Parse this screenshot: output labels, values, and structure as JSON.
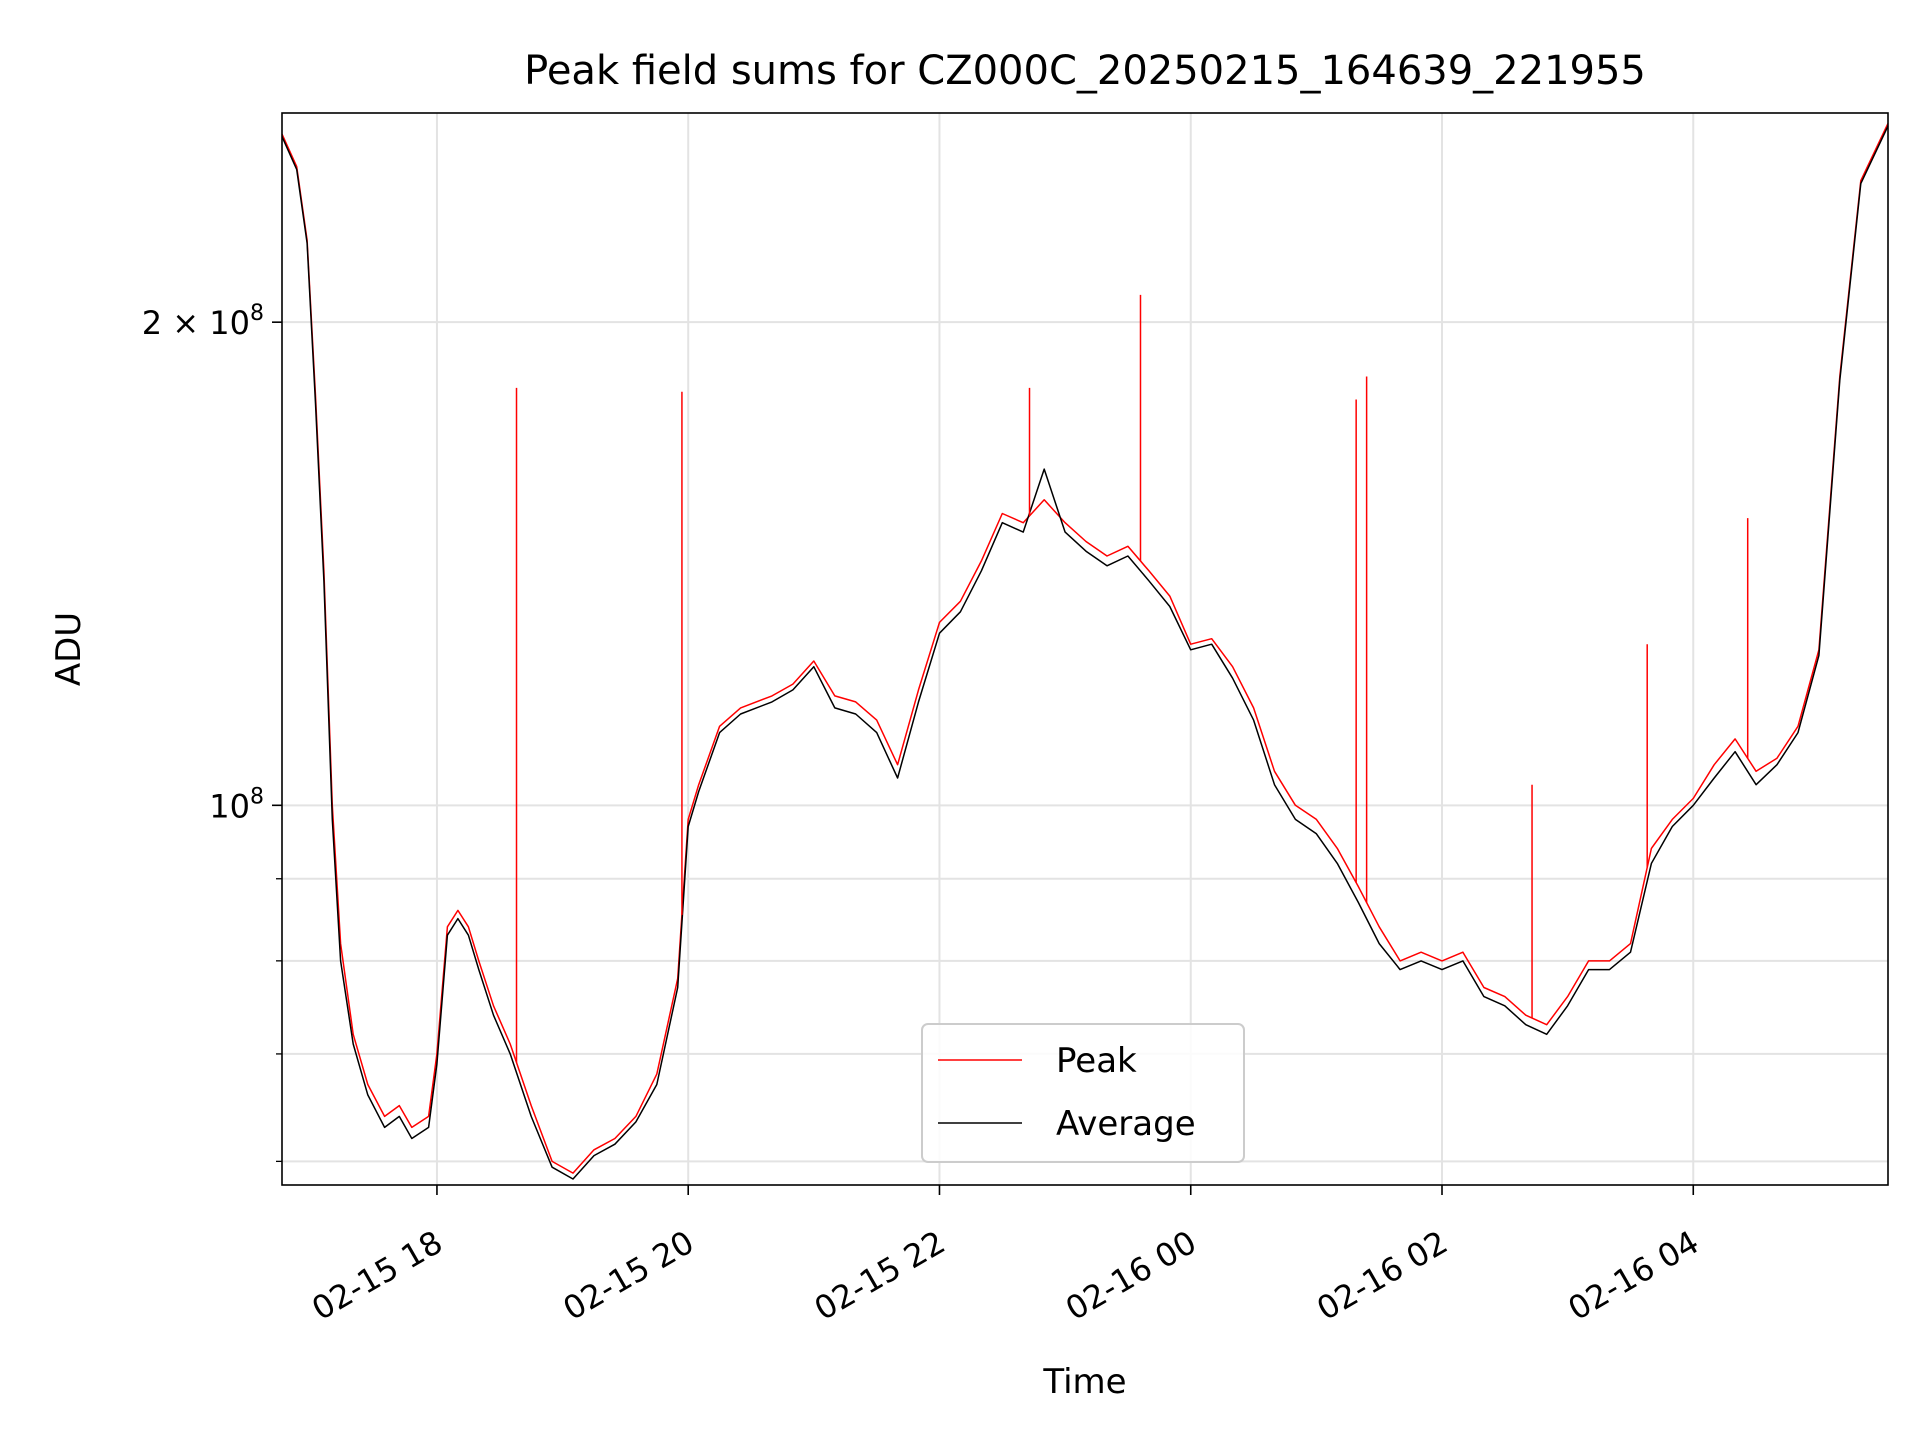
{
  "chart_data": {
    "type": "line",
    "title": "Peak field sums for CZ000C_20250215_164639_221955",
    "xlabel": "Time",
    "ylabel": "ADU",
    "yscale": "log",
    "ylim": [
      58000000,
      270000000
    ],
    "xlim": [
      "2025-02-15 16:46",
      "2025-02-16 05:33"
    ],
    "x_tick_labels": [
      "02-15 18",
      "02-15 20",
      "02-15 22",
      "02-16 00",
      "02-16 02",
      "02-16 04"
    ],
    "x_tick_times": [
      "2025-02-15 18:00",
      "2025-02-15 20:00",
      "2025-02-15 22:00",
      "2025-02-16 00:00",
      "2025-02-16 02:00",
      "2025-02-16 04:00"
    ],
    "y_major_ticks": [
      {
        "value": 200000000,
        "label": "2 × 10^8"
      },
      {
        "value": 100000000,
        "label": "10^8"
      }
    ],
    "y_minor_ticks": [
      60000000,
      70000000,
      80000000,
      90000000
    ],
    "grid": true,
    "legend_position": "lower center",
    "series": [
      {
        "name": "Peak",
        "color": "#ff0000",
        "x": [
          "2025-02-15 16:46",
          "2025-02-15 16:53",
          "2025-02-15 16:58",
          "2025-02-15 17:02",
          "2025-02-15 17:06",
          "2025-02-15 17:10",
          "2025-02-15 17:14",
          "2025-02-15 17:20",
          "2025-02-15 17:27",
          "2025-02-15 17:35",
          "2025-02-15 17:42",
          "2025-02-15 17:48",
          "2025-02-15 17:56",
          "2025-02-15 18:00",
          "2025-02-15 18:05",
          "2025-02-15 18:10",
          "2025-02-15 18:15",
          "2025-02-15 18:20",
          "2025-02-15 18:27",
          "2025-02-15 18:35",
          "2025-02-15 18:45",
          "2025-02-15 18:55",
          "2025-02-15 19:05",
          "2025-02-15 19:15",
          "2025-02-15 19:25",
          "2025-02-15 19:35",
          "2025-02-15 19:45",
          "2025-02-15 19:55",
          "2025-02-15 20:00",
          "2025-02-15 20:05",
          "2025-02-15 20:15",
          "2025-02-15 20:25",
          "2025-02-15 20:40",
          "2025-02-15 20:50",
          "2025-02-15 21:00",
          "2025-02-15 21:10",
          "2025-02-15 21:20",
          "2025-02-15 21:30",
          "2025-02-15 21:40",
          "2025-02-15 21:50",
          "2025-02-15 22:00",
          "2025-02-15 22:10",
          "2025-02-15 22:20",
          "2025-02-15 22:30",
          "2025-02-15 22:40",
          "2025-02-15 22:50",
          "2025-02-15 23:00",
          "2025-02-15 23:10",
          "2025-02-15 23:20",
          "2025-02-15 23:30",
          "2025-02-15 23:40",
          "2025-02-15 23:50",
          "2025-02-16 00:00",
          "2025-02-16 00:10",
          "2025-02-16 00:20",
          "2025-02-16 00:30",
          "2025-02-16 00:40",
          "2025-02-16 00:50",
          "2025-02-16 01:00",
          "2025-02-16 01:10",
          "2025-02-16 01:20",
          "2025-02-16 01:30",
          "2025-02-16 01:40",
          "2025-02-16 01:50",
          "2025-02-16 02:00",
          "2025-02-16 02:10",
          "2025-02-16 02:20",
          "2025-02-16 02:30",
          "2025-02-16 02:40",
          "2025-02-16 02:50",
          "2025-02-16 03:00",
          "2025-02-16 03:10",
          "2025-02-16 03:20",
          "2025-02-16 03:30",
          "2025-02-16 03:40",
          "2025-02-16 03:50",
          "2025-02-16 04:00",
          "2025-02-16 04:10",
          "2025-02-16 04:20",
          "2025-02-16 04:30",
          "2025-02-16 04:40",
          "2025-02-16 04:50",
          "2025-02-16 05:00",
          "2025-02-16 05:10",
          "2025-02-16 05:20",
          "2025-02-16 05:33"
        ],
        "values": [
          262000000,
          250000000,
          225000000,
          180000000,
          140000000,
          100000000,
          82000000,
          72000000,
          67000000,
          64000000,
          65000000,
          63000000,
          64000000,
          70000000,
          84000000,
          86000000,
          84000000,
          80000000,
          75000000,
          71000000,
          65000000,
          60000000,
          59000000,
          61000000,
          62000000,
          64000000,
          68000000,
          78000000,
          98000000,
          103000000,
          112000000,
          115000000,
          117000000,
          119000000,
          123000000,
          117000000,
          116000000,
          113000000,
          106000000,
          118000000,
          130000000,
          134000000,
          142000000,
          152000000,
          150000000,
          155000000,
          150000000,
          146000000,
          143000000,
          145000000,
          140000000,
          135000000,
          126000000,
          127000000,
          122000000,
          115000000,
          105000000,
          100000000,
          98000000,
          94000000,
          89000000,
          84000000,
          80000000,
          81000000,
          80000000,
          81000000,
          77000000,
          76000000,
          74000000,
          73000000,
          76000000,
          80000000,
          80000000,
          82000000,
          94000000,
          98000000,
          101000000,
          106000000,
          110000000,
          105000000,
          107000000,
          112000000,
          125000000,
          185000000,
          245000000,
          266000000
        ],
        "spikes": [
          {
            "x": "2025-02-15 18:38",
            "value": 182000000
          },
          {
            "x": "2025-02-15 19:57",
            "value": 181000000
          },
          {
            "x": "2025-02-15 22:43",
            "value": 182000000
          },
          {
            "x": "2025-02-15 23:36",
            "value": 208000000
          },
          {
            "x": "2025-02-16 01:19",
            "value": 179000000
          },
          {
            "x": "2025-02-16 01:24",
            "value": 185000000
          },
          {
            "x": "2025-02-16 02:43",
            "value": 103000000
          },
          {
            "x": "2025-02-16 03:38",
            "value": 126000000
          },
          {
            "x": "2025-02-16 04:26",
            "value": 151000000
          }
        ]
      },
      {
        "name": "Average",
        "color": "#000000",
        "x": [
          "2025-02-15 16:46",
          "2025-02-15 16:53",
          "2025-02-15 16:58",
          "2025-02-15 17:02",
          "2025-02-15 17:06",
          "2025-02-15 17:10",
          "2025-02-15 17:14",
          "2025-02-15 17:20",
          "2025-02-15 17:27",
          "2025-02-15 17:35",
          "2025-02-15 17:42",
          "2025-02-15 17:48",
          "2025-02-15 17:56",
          "2025-02-15 18:00",
          "2025-02-15 18:05",
          "2025-02-15 18:10",
          "2025-02-15 18:15",
          "2025-02-15 18:20",
          "2025-02-15 18:27",
          "2025-02-15 18:35",
          "2025-02-15 18:45",
          "2025-02-15 18:55",
          "2025-02-15 19:05",
          "2025-02-15 19:15",
          "2025-02-15 19:25",
          "2025-02-15 19:35",
          "2025-02-15 19:45",
          "2025-02-15 19:55",
          "2025-02-15 20:00",
          "2025-02-15 20:05",
          "2025-02-15 20:15",
          "2025-02-15 20:25",
          "2025-02-15 20:40",
          "2025-02-15 20:50",
          "2025-02-15 21:00",
          "2025-02-15 21:10",
          "2025-02-15 21:20",
          "2025-02-15 21:30",
          "2025-02-15 21:40",
          "2025-02-15 21:50",
          "2025-02-15 22:00",
          "2025-02-15 22:10",
          "2025-02-15 22:20",
          "2025-02-15 22:30",
          "2025-02-15 22:40",
          "2025-02-15 22:50",
          "2025-02-15 23:00",
          "2025-02-15 23:10",
          "2025-02-15 23:20",
          "2025-02-15 23:30",
          "2025-02-15 23:40",
          "2025-02-15 23:50",
          "2025-02-16 00:00",
          "2025-02-16 00:10",
          "2025-02-16 00:20",
          "2025-02-16 00:30",
          "2025-02-16 00:40",
          "2025-02-16 00:50",
          "2025-02-16 01:00",
          "2025-02-16 01:10",
          "2025-02-16 01:20",
          "2025-02-16 01:30",
          "2025-02-16 01:40",
          "2025-02-16 01:50",
          "2025-02-16 02:00",
          "2025-02-16 02:10",
          "2025-02-16 02:20",
          "2025-02-16 02:30",
          "2025-02-16 02:40",
          "2025-02-16 02:50",
          "2025-02-16 03:00",
          "2025-02-16 03:10",
          "2025-02-16 03:20",
          "2025-02-16 03:30",
          "2025-02-16 03:40",
          "2025-02-16 03:50",
          "2025-02-16 04:00",
          "2025-02-16 04:10",
          "2025-02-16 04:20",
          "2025-02-16 04:30",
          "2025-02-16 04:40",
          "2025-02-16 04:50",
          "2025-02-16 05:00",
          "2025-02-16 05:10",
          "2025-02-16 05:20",
          "2025-02-16 05:33"
        ],
        "values": [
          261000000,
          249000000,
          224000000,
          178000000,
          138000000,
          98000000,
          80000000,
          71000000,
          66000000,
          63000000,
          64000000,
          62000000,
          63000000,
          69000000,
          83000000,
          85000000,
          83000000,
          79000000,
          74000000,
          70000000,
          64000000,
          59500000,
          58500000,
          60500000,
          61500000,
          63500000,
          67000000,
          77000000,
          97000000,
          102000000,
          111000000,
          114000000,
          116000000,
          118000000,
          122000000,
          115000000,
          114000000,
          111000000,
          104000000,
          116000000,
          128000000,
          132000000,
          140000000,
          150000000,
          148000000,
          162000000,
          148000000,
          144000000,
          141000000,
          143000000,
          138000000,
          133000000,
          125000000,
          126000000,
          120000000,
          113000000,
          103000000,
          98000000,
          96000000,
          92000000,
          87000000,
          82000000,
          79000000,
          80000000,
          79000000,
          80000000,
          76000000,
          75000000,
          73000000,
          72000000,
          75000000,
          79000000,
          79000000,
          81000000,
          92000000,
          97000000,
          100000000,
          104000000,
          108000000,
          103000000,
          106000000,
          111000000,
          124000000,
          184000000,
          244000000,
          265000000
        ]
      }
    ]
  }
}
